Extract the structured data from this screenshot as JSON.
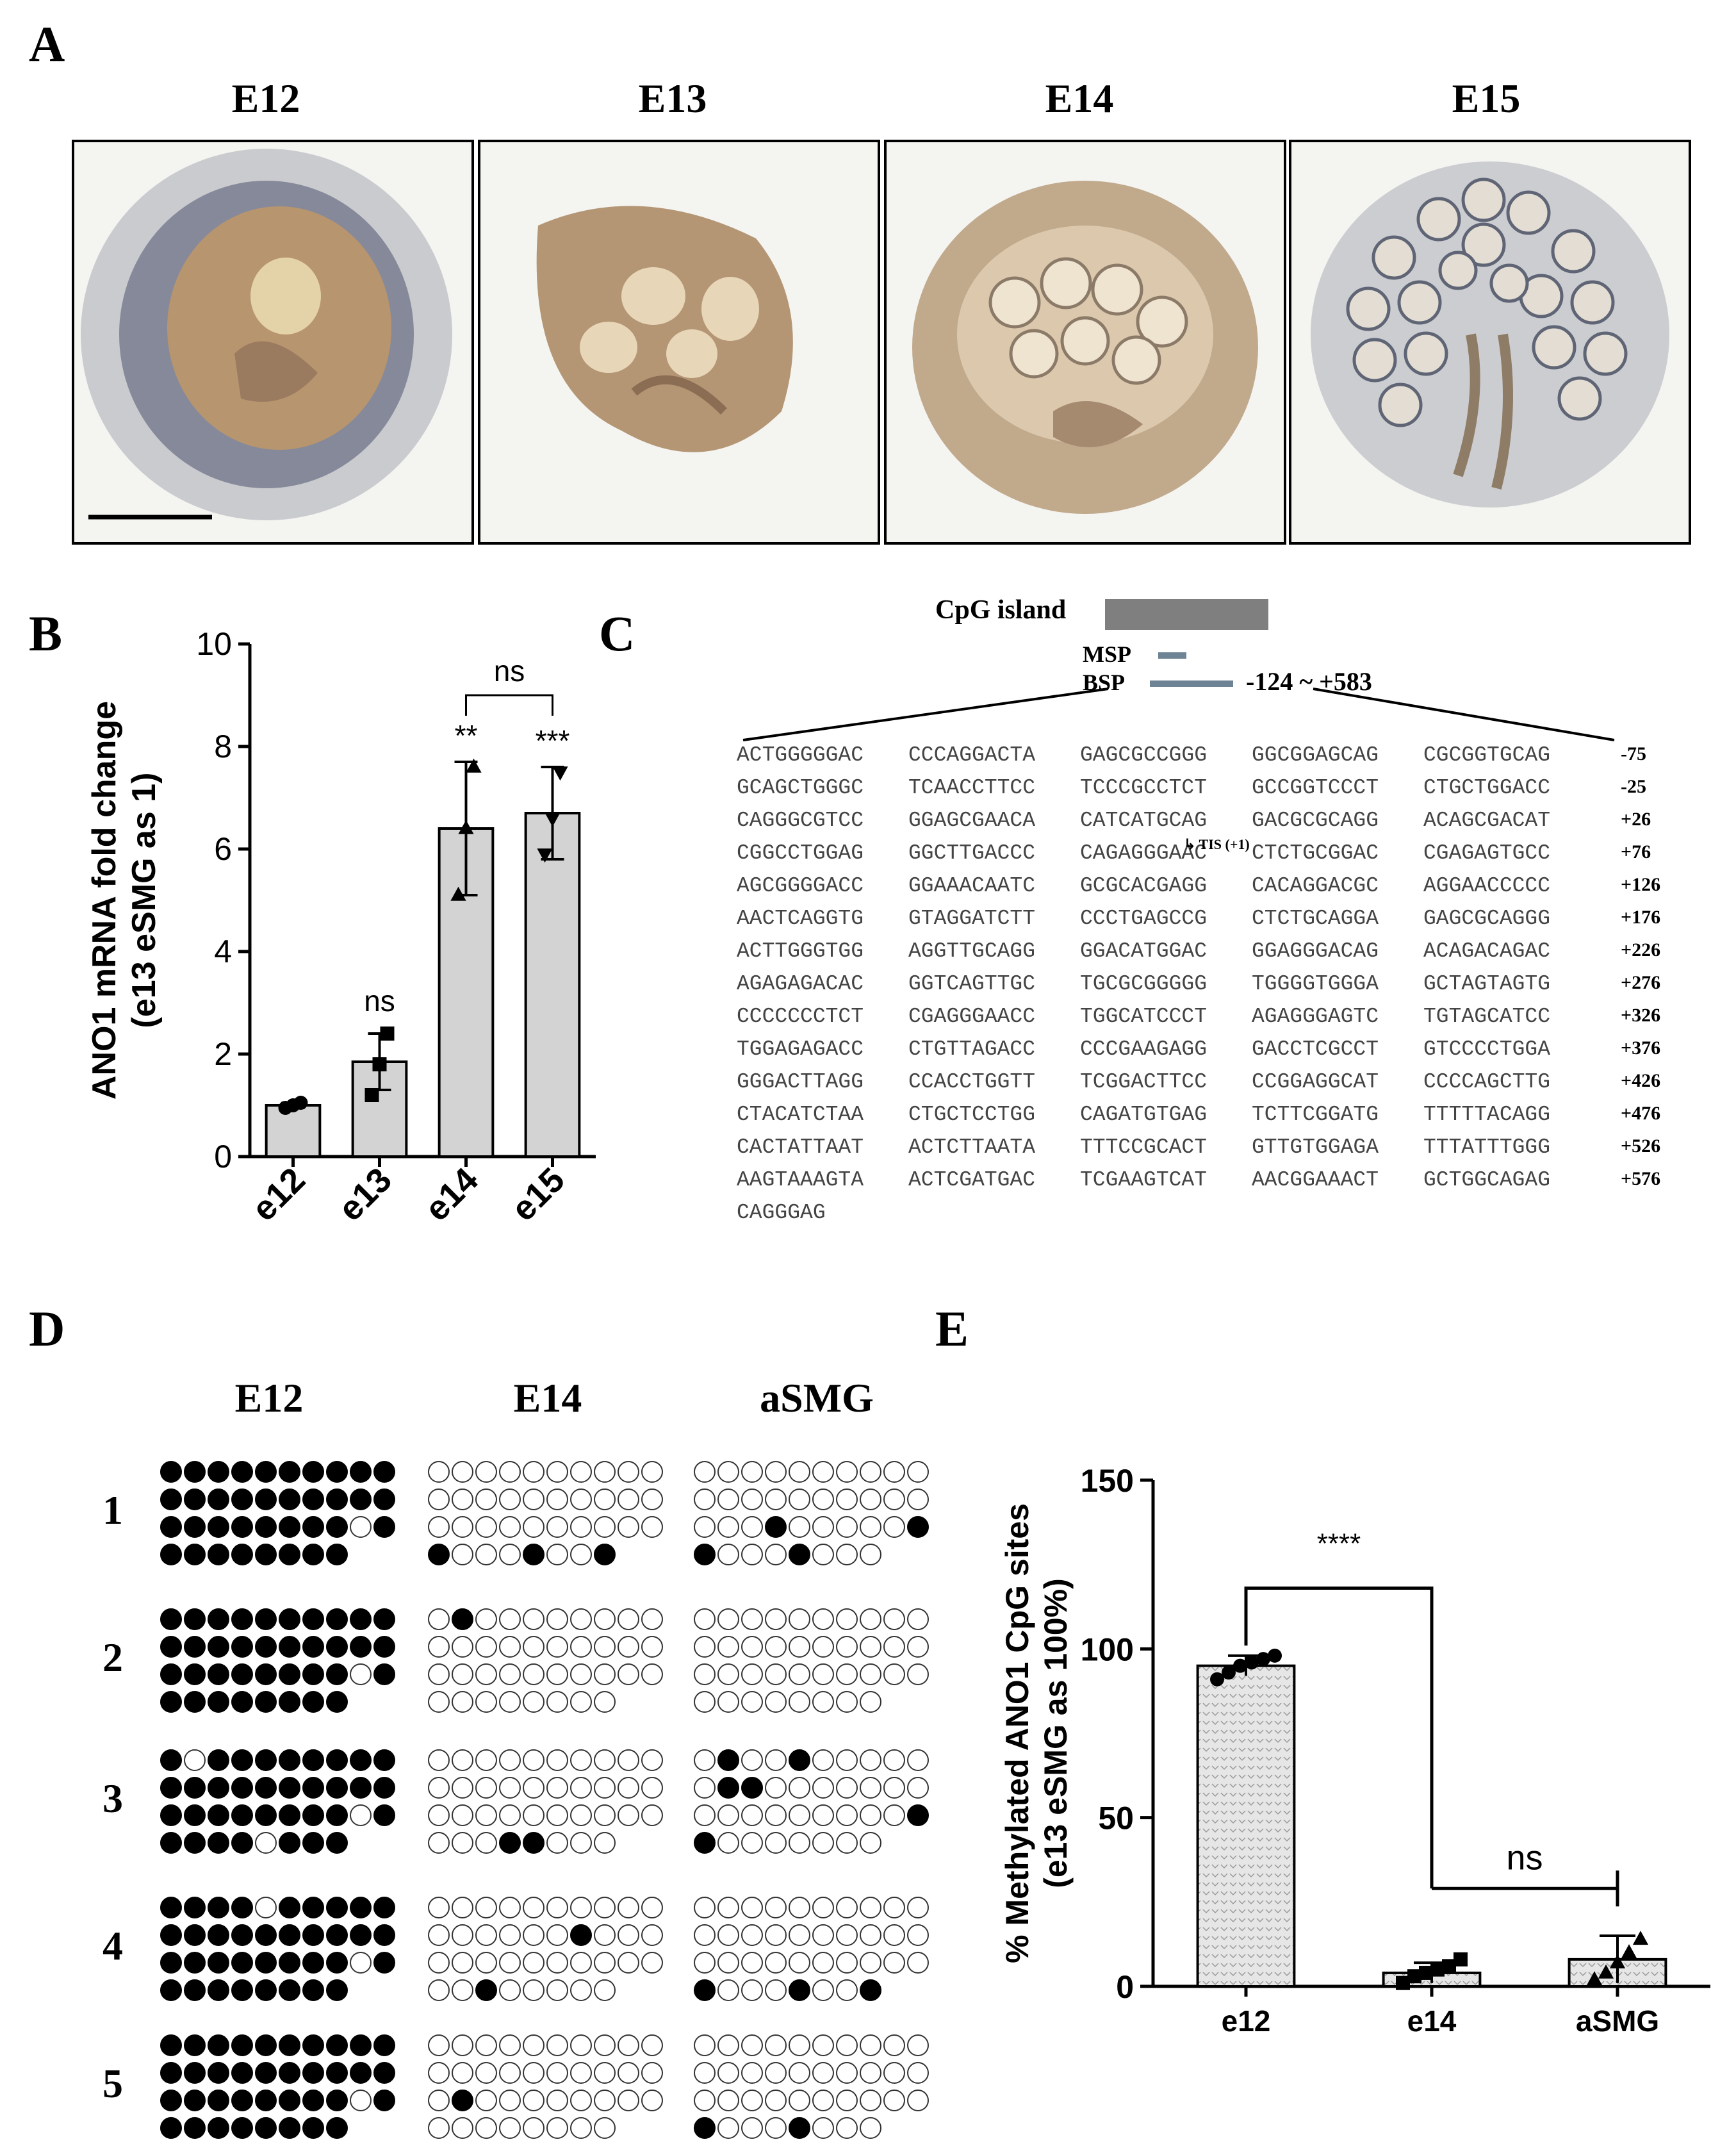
{
  "panel_labels": {
    "a": "A",
    "b": "B",
    "c": "C",
    "d": "D",
    "e": "E"
  },
  "panel_a": {
    "stages": [
      "E12",
      "E13",
      "E14",
      "E15"
    ],
    "image_colors": {
      "tissue": "#b89a7a",
      "mesenchyme": "#8a8fa0",
      "background": "#f3f3f1"
    }
  },
  "chart_b": {
    "type": "bar",
    "ylabel_line1": "ANO1 mRNA fold change",
    "ylabel_line2": "(e13 eSMG as 1)",
    "categories": [
      "e12",
      "e13",
      "e14",
      "e15"
    ],
    "values": [
      1.0,
      1.85,
      6.4,
      6.7
    ],
    "errors": [
      0.05,
      0.55,
      1.3,
      0.9
    ],
    "points": [
      [
        0.95,
        1.0,
        1.05
      ],
      [
        1.2,
        1.8,
        2.4
      ],
      [
        5.1,
        6.4,
        7.6
      ],
      [
        5.9,
        6.6,
        7.5
      ]
    ],
    "markers": [
      "circle",
      "square",
      "triangle",
      "inverted-triangle"
    ],
    "ylim": [
      0,
      10
    ],
    "yticks": [
      "0",
      "2",
      "4",
      "6",
      "8",
      "10"
    ],
    "annotations": [
      "ns",
      "**",
      "***",
      "ns"
    ],
    "bar_color": "#d3d3d3"
  },
  "panel_c": {
    "cpg_island": "CpG island",
    "msp": "MSP",
    "bsp": "BSP",
    "range": "-124 ~ +583",
    "tis": "TIS (+1)",
    "rows": [
      {
        "g": [
          "ACTGGGGGAC",
          "CCCAGGACTA",
          "GAGCGCCGGG",
          "GGCGGAGCAG",
          "CGCGGTGCAG"
        ],
        "n": "-75"
      },
      {
        "g": [
          "GCAGCTGGGC",
          "TCAACCTTCC",
          "TCCCGCCTCT",
          "GCCGGTCCCT",
          "CTGCTGGACC"
        ],
        "n": "-25"
      },
      {
        "g": [
          "CAGGGCGTCC",
          "GGAGCGAACA",
          "CATCATGCAG",
          "GACGCGCAGG",
          "ACAGCGACAT"
        ],
        "n": "+26"
      },
      {
        "g": [
          "CGGCCTGGAG",
          "GGCTTGACCC",
          "CAGAGGGAAC",
          "CTCTGCGGAC",
          "CGAGAGTGCC"
        ],
        "n": "+76"
      },
      {
        "g": [
          "AGCGGGGACC",
          "GGAAACAATC",
          "GCGCACGAGG",
          "CACAGGACGC",
          "AGGAACCCCC"
        ],
        "n": "+126"
      },
      {
        "g": [
          "AACTCAGGTG",
          "GTAGGATCTT",
          "CCCTGAGCCG",
          "CTCTGCAGGA",
          "GAGCGCAGGG"
        ],
        "n": "+176"
      },
      {
        "g": [
          "ACTTGGGTGG",
          "AGGTTGCAGG",
          "GGACATGGAC",
          "GGAGGGACAG",
          "ACAGACAGAC"
        ],
        "n": "+226"
      },
      {
        "g": [
          "AGAGAGACAC",
          "GGTCAGTTGC",
          "TGCGCGGGGG",
          "TGGGGTGGGA",
          "GCTAGTAGTG"
        ],
        "n": "+276"
      },
      {
        "g": [
          "CCCCCCCTCT",
          "CGAGGGAACC",
          "TGGCATCCCT",
          "AGAGGGAGTC",
          "TGTAGCATCC"
        ],
        "n": "+326"
      },
      {
        "g": [
          "TGGAGAGACC",
          "CTGTTAGACC",
          "CCCGAAGAGG",
          "GACCTCGCCT",
          "GTCCCCTGGA"
        ],
        "n": "+376"
      },
      {
        "g": [
          "GGGACTTAGG",
          "CCACCTGGTT",
          "TCGGACTTCC",
          "CCGGAGGCAT",
          "CCCCAGCTTG"
        ],
        "n": "+426"
      },
      {
        "g": [
          "CTACATCTAA",
          "CTGCTCCTGG",
          "CAGATGTGAG",
          "TCTTCGGATG",
          "TTTTTACAGG"
        ],
        "n": "+476"
      },
      {
        "g": [
          "CACTATTAAT",
          "ACTCTTAATA",
          "TTTCCGCACT",
          "GTTGTGGAGA",
          "TTTATTTGGG"
        ],
        "n": "+526"
      },
      {
        "g": [
          "AAGTAAAGTA",
          "ACTCGATGAC",
          "TCGAAGTCAT",
          "AACGGAAACT",
          "GCTGGCAGAG"
        ],
        "n": "+576"
      },
      {
        "g": [
          "CAGGGAG"
        ],
        "n": ""
      }
    ]
  },
  "panel_d": {
    "columns": [
      "E12",
      "E14",
      "aSMG"
    ],
    "clones": [
      "1",
      "2",
      "3",
      "4",
      "5"
    ],
    "patterns": {
      "E12": [
        [
          "1111111111",
          "1111111111",
          "1111111101",
          "11111111"
        ],
        [
          "1111111111",
          "1111111111",
          "1111111101",
          "11111111"
        ],
        [
          "1011111111",
          "1111111111",
          "1111111101",
          "11110111"
        ],
        [
          "1111011111",
          "1111111111",
          "1111111101",
          "11111111"
        ],
        [
          "1111111111",
          "1111111111",
          "1111111101",
          "11111111"
        ]
      ],
      "E14": [
        [
          "0000000000",
          "0000000000",
          "0000000000",
          "10001001"
        ],
        [
          "0100000000",
          "0000000000",
          "0000000000",
          "00000000"
        ],
        [
          "0000000000",
          "0000000000",
          "0000000000",
          "00011000"
        ],
        [
          "0000000000",
          "0000001000",
          "0000000000",
          "00100000"
        ],
        [
          "0000000000",
          "0000000000",
          "0100000000",
          "00000000"
        ]
      ],
      "aSMG": [
        [
          "0000000000",
          "0000000000",
          "0001000001",
          "10001000"
        ],
        [
          "0000000000",
          "0000000000",
          "0000000000",
          "00000000"
        ],
        [
          "0100100000",
          "0110000000",
          "0000000001",
          "10000000"
        ],
        [
          "0000000000",
          "0000000000",
          "0000000000",
          "10001001"
        ],
        [
          "0000000000",
          "0000000000",
          "0000000000",
          "10001000"
        ]
      ]
    }
  },
  "chart_e": {
    "type": "bar",
    "ylabel_line1": "% Methylated ANO1 CpG sites",
    "ylabel_line2": "(e13 eSMG as 100%)",
    "categories": [
      "e12",
      "e14",
      "aSMG"
    ],
    "values": [
      95,
      4,
      8
    ],
    "errors": [
      3,
      3,
      7
    ],
    "points": [
      [
        91,
        93,
        95,
        96,
        97,
        98
      ],
      [
        1,
        3,
        4,
        5,
        6,
        8
      ],
      [
        2,
        4,
        7,
        10,
        14
      ]
    ],
    "ylim": [
      0,
      150
    ],
    "yticks": [
      "0",
      "50",
      "100",
      "150"
    ],
    "annotations": [
      "****",
      "ns"
    ],
    "bar_color": "#e6e6e6"
  }
}
